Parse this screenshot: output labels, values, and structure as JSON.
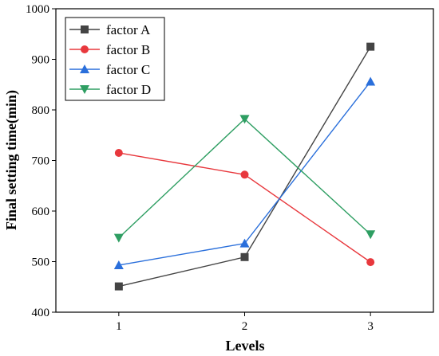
{
  "chart_data": {
    "type": "line",
    "title": "",
    "xlabel": "Levels",
    "ylabel": "Final setting time(min)",
    "x": [
      1,
      2,
      3
    ],
    "xlim": [
      0.5,
      3.5
    ],
    "ylim": [
      400,
      1000
    ],
    "xticks": [
      1,
      2,
      3
    ],
    "yticks": [
      400,
      500,
      600,
      700,
      800,
      900,
      1000
    ],
    "grid": false,
    "legend_position": "top-left",
    "series": [
      {
        "name": "factor A",
        "values": [
          451,
          509,
          925
        ],
        "color": "#444444",
        "marker": "square"
      },
      {
        "name": "factor B",
        "values": [
          715,
          672,
          499
        ],
        "color": "#e8383d",
        "marker": "circle"
      },
      {
        "name": "factor C",
        "values": [
          493,
          536,
          856
        ],
        "color": "#2a6fdb",
        "marker": "triangle-up"
      },
      {
        "name": "factor D",
        "values": [
          547,
          782,
          554
        ],
        "color": "#2e9e62",
        "marker": "triangle-down"
      }
    ]
  }
}
